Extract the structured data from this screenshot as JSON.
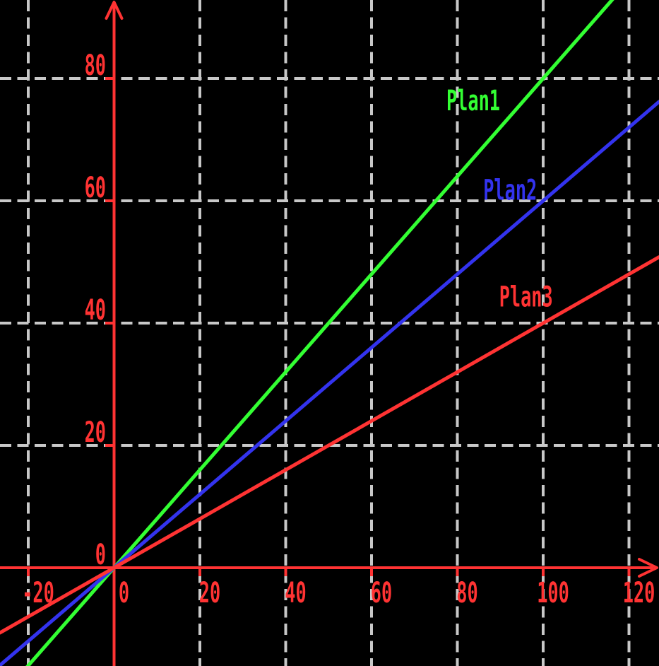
{
  "chart_data": {
    "type": "line",
    "title": "",
    "xlabel": "",
    "ylabel": "",
    "background_color": "#000000",
    "axis_color": "#ff3333",
    "grid_color": "#c8c8c8",
    "grid": "dashed",
    "legend_position": "inline-labels",
    "xlim": [
      -26.6,
      127.0
    ],
    "ylim": [
      -16.1,
      92.9
    ],
    "x_ticks": [
      -20,
      0,
      20,
      40,
      60,
      80,
      100,
      120
    ],
    "x_tick_labels": [
      "-20",
      "0",
      "20",
      "40",
      "60",
      "80",
      "100",
      "120"
    ],
    "y_ticks": [
      0,
      20,
      40,
      60,
      80
    ],
    "y_tick_labels": [
      "0",
      "20",
      "40",
      "60",
      "80"
    ],
    "series": [
      {
        "name": "Plan1",
        "color": "#33ff33",
        "slope": 0.8,
        "intercept": 0,
        "equation": "y = 0.8x",
        "sample_points": [
          [
            0,
            0
          ],
          [
            50,
            40
          ],
          [
            100,
            80
          ]
        ],
        "label_pos": {
          "x": 83.7,
          "y": 74.8
        }
      },
      {
        "name": "Plan2",
        "color": "#3333ee",
        "slope": 0.6,
        "intercept": 0,
        "equation": "y = 0.6x",
        "sample_points": [
          [
            0,
            0
          ],
          [
            60,
            36
          ],
          [
            120,
            72
          ]
        ],
        "label_pos": {
          "x": 92.3,
          "y": 60.2
        }
      },
      {
        "name": "Plan3",
        "color": "#ff3333",
        "slope": 0.4,
        "intercept": 0,
        "equation": "y = 0.4x",
        "sample_points": [
          [
            0,
            0
          ],
          [
            50,
            20
          ],
          [
            100,
            40
          ]
        ],
        "label_pos": {
          "x": 96.0,
          "y": 42.7
        }
      }
    ]
  }
}
